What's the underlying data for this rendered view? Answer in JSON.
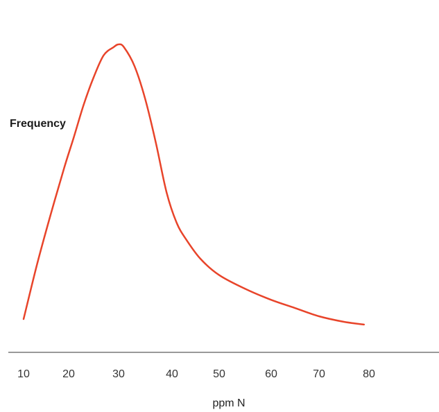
{
  "chart_data": {
    "type": "line",
    "title": "",
    "xlabel": "ppm N",
    "ylabel": "Frequency",
    "xlim": [
      10,
      80
    ],
    "x_ticks": [
      "10",
      "20",
      "30",
      "40",
      "50",
      "60",
      "70",
      "80"
    ],
    "y_ticks": [],
    "grid": false,
    "legend": "none",
    "series": [
      {
        "color": "#e8442a",
        "x": [
          10,
          13,
          16,
          19,
          21,
          23,
          25,
          27,
          29,
          30,
          31,
          33,
          35,
          37,
          39,
          41,
          43,
          46,
          50,
          55,
          60,
          65,
          70,
          75,
          79
        ],
        "y": [
          0.0,
          0.2,
          0.38,
          0.55,
          0.66,
          0.78,
          0.88,
          0.96,
          0.99,
          1.0,
          0.99,
          0.92,
          0.8,
          0.64,
          0.46,
          0.35,
          0.29,
          0.22,
          0.16,
          0.11,
          0.07,
          0.04,
          0.01,
          -0.01,
          -0.02
        ]
      }
    ]
  }
}
